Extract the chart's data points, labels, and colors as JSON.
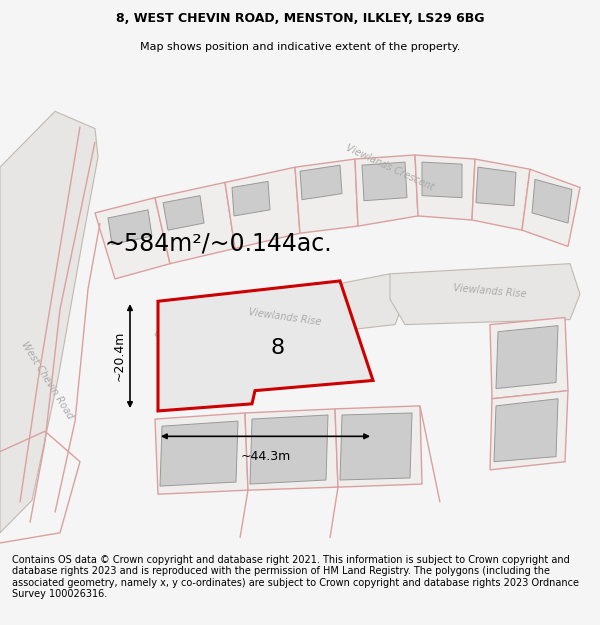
{
  "title_line1": "8, WEST CHEVIN ROAD, MENSTON, ILKLEY, LS29 6BG",
  "title_line2": "Map shows position and indicative extent of the property.",
  "area_text": "~584m²/~0.144ac.",
  "label_number": "8",
  "dim_width": "~44.3m",
  "dim_height": "~20.4m",
  "road_label_west_chevin": "West Chevin Road",
  "road_label_viewlands_rise1": "Viewlands Rise",
  "road_label_viewlands_rise2": "Viewlands Rise",
  "road_label_viewlands_crescent": "Viewlands Crescent",
  "footer_text": "Contains OS data © Crown copyright and database right 2021. This information is subject to Crown copyright and database rights 2023 and is reproduced with the permission of HM Land Registry. The polygons (including the associated geometry, namely x, y co-ordinates) are subject to Crown copyright and database rights 2023 Ordnance Survey 100026316.",
  "bg_color": "#f5f5f5",
  "map_bg_color": "#f0eeec",
  "plot_fill_color": "#e8e8e8",
  "plot_edge_color": "#cc0000",
  "pink_line_color": "#d9a0a0",
  "building_fill_color": "#cccccc",
  "building_edge_color": "#999999",
  "dim_line_color": "#000000",
  "road_label_color": "#aaaaaa",
  "title_fontsize": 9,
  "area_fontsize": 17,
  "label_fontsize": 14,
  "road_label_fontsize": 7,
  "footer_fontsize": 7
}
